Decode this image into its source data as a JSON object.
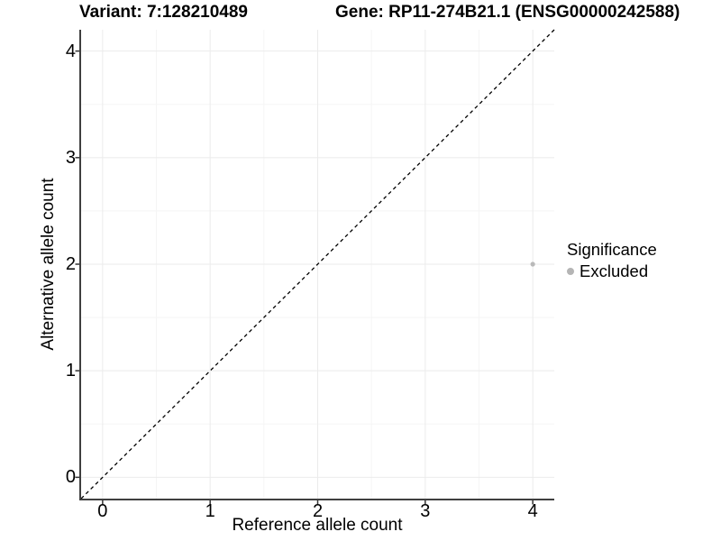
{
  "chart_data": {
    "type": "scatter",
    "title_left": "Variant: 7:128210489",
    "title_right": "Gene: RP11-274B21.1 (ENSG00000242588)",
    "xlabel": "Reference allele count",
    "ylabel": "Alternative allele count",
    "xlim": [
      -0.2,
      4.2
    ],
    "ylim": [
      -0.2,
      4.2
    ],
    "x_ticks": [
      "0",
      "1",
      "2",
      "3",
      "4"
    ],
    "x_tick_values": [
      0,
      1,
      2,
      3,
      4
    ],
    "y_ticks": [
      "0",
      "1",
      "2",
      "3",
      "4"
    ],
    "y_tick_values": [
      0,
      1,
      2,
      3,
      4
    ],
    "x_minor_ticks": [
      0.5,
      1.5,
      2.5,
      3.5
    ],
    "y_minor_ticks": [
      0.5,
      1.5,
      2.5,
      3.5
    ],
    "grid": "major+minor",
    "points": [
      {
        "x": 4,
        "y": 2,
        "series": "Excluded"
      }
    ],
    "reference_line": {
      "type": "identity",
      "equation": "y = x",
      "style": "dashed",
      "color": "#000000"
    },
    "legend": {
      "title": "Significance",
      "position": "right",
      "entries": [
        {
          "label": "Excluded",
          "color": "#b5b5b5"
        }
      ]
    },
    "colors": {
      "point": "#b9b9b9",
      "grid_major": "#ebebeb",
      "grid_minor": "#f5f5f5",
      "axis_line": "#3f3f3f",
      "tick": "#333333",
      "text": "#000000",
      "background": "#ffffff"
    }
  }
}
